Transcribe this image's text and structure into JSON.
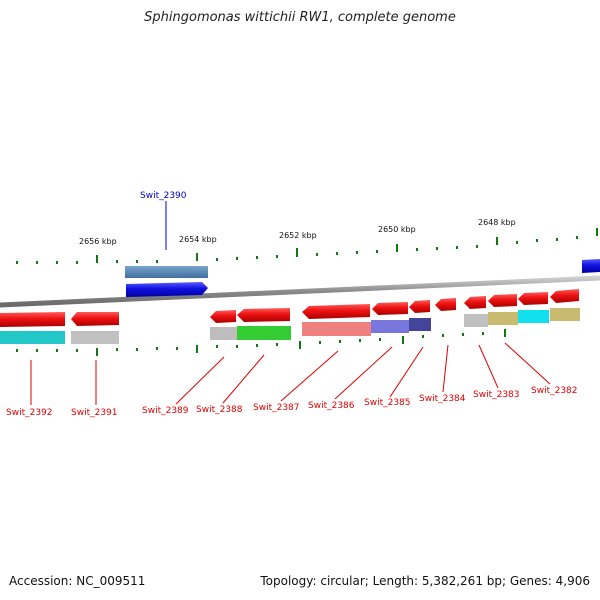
{
  "title": "Sphingomonas wittichii RW1, complete genome",
  "footer": {
    "accession": "Accession: NC_009511",
    "summary": "Topology: circular; Length: 5,382,261 bp; Genes: 4,906"
  },
  "scale_labels": [
    "2656 kbp",
    "2654 kbp",
    "2652 kbp",
    "2650 kbp",
    "2648 kbp"
  ],
  "gene_labels": [
    {
      "text": "Swit_2390",
      "color": "#0000cc"
    },
    {
      "text": "Swit_2392",
      "color": "#dd0000"
    },
    {
      "text": "Swit_2391",
      "color": "#dd0000"
    },
    {
      "text": "Swit_2389",
      "color": "#dd0000"
    },
    {
      "text": "Swit_2388",
      "color": "#dd0000"
    },
    {
      "text": "Swit_2387",
      "color": "#dd0000"
    },
    {
      "text": "Swit_2386",
      "color": "#dd0000"
    },
    {
      "text": "Swit_2385",
      "color": "#dd0000"
    },
    {
      "text": "Swit_2384",
      "color": "#dd0000"
    },
    {
      "text": "Swit_2383",
      "color": "#dd0000"
    },
    {
      "text": "Swit_2382",
      "color": "#dd0000"
    }
  ],
  "colors": {
    "forward_gene": "#1010e0",
    "reverse_gene": "#ee1111",
    "backbone": "#999999",
    "tick": "#117711"
  }
}
